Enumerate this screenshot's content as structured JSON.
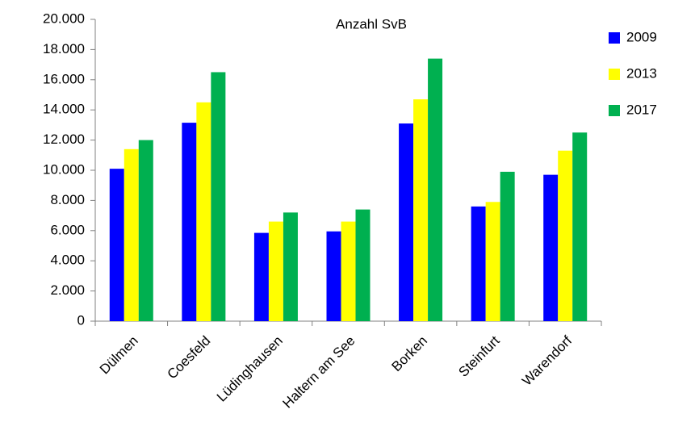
{
  "chart_data": {
    "type": "bar",
    "title": "Anzahl SvB",
    "categories": [
      "Dülmen",
      "Coesfeld",
      "Lüdinghausen",
      "Haltern am See",
      "Borken",
      "Steinfurt",
      "Warendorf"
    ],
    "series": [
      {
        "name": "2009",
        "color": "#0000ff",
        "values": [
          10100,
          13150,
          5850,
          5950,
          13100,
          7600,
          9700
        ]
      },
      {
        "name": "2013",
        "color": "#ffff00",
        "values": [
          11400,
          14500,
          6600,
          6600,
          14700,
          7900,
          11300
        ]
      },
      {
        "name": "2017",
        "color": "#00b050",
        "values": [
          12000,
          16500,
          7200,
          7400,
          17400,
          9900,
          12500
        ]
      }
    ],
    "ylim": [
      0,
      20000
    ],
    "yticks": [
      0,
      {
        "value": 2000,
        "label": "2.000"
      },
      {
        "value": 4000,
        "label": "4.000"
      },
      {
        "value": 6000,
        "label": "6.000"
      },
      {
        "value": 8000,
        "label": "8.000"
      },
      {
        "value": 10000,
        "label": "10.000"
      },
      {
        "value": 12000,
        "label": "12.000"
      },
      {
        "value": 14000,
        "label": "14.000"
      },
      {
        "value": 16000,
        "label": "16.000"
      },
      {
        "value": 18000,
        "label": "18.000"
      },
      {
        "value": 20000,
        "label": "20.000"
      }
    ],
    "grid": false,
    "legend": "right"
  }
}
